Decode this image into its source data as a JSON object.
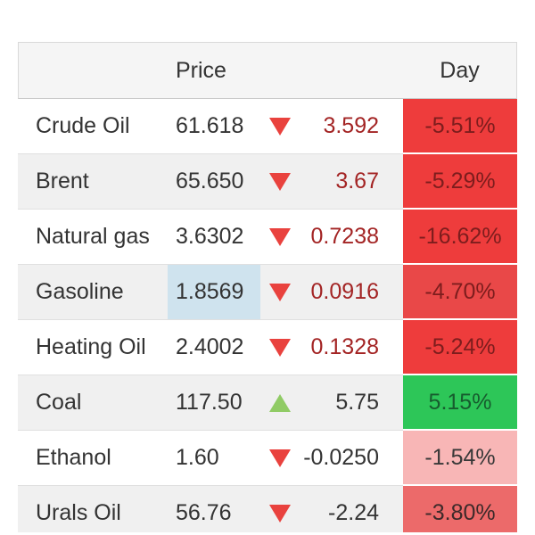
{
  "header": {
    "price_label": "Price",
    "day_label": "Day"
  },
  "colors": {
    "strong_red_bg": "#ee3c3c",
    "soft_red_bg": "#e94848",
    "medium_red_bg": "#ec6a6a",
    "light_pink_bg": "#f8b6b6",
    "green_bg": "#2dc658",
    "dark_red_text": "#7d1d1d",
    "change_red_text": "#a32424",
    "down_arrow": "#e9423e",
    "up_arrow": "#90cb65",
    "price_flash_blue": "#cfe3ee"
  },
  "rows": [
    {
      "name": "Crude Oil",
      "price": "61.618",
      "price_box_style": "",
      "direction": "down",
      "arrow_style": "width:0;height:0;border-left:12px solid transparent;border-right:12px solid transparent;border-top:20px solid #e9423e",
      "change": "3.592",
      "change_style": "color:#a32424",
      "day": "-5.51%",
      "day_style": "background:#ee3c3c;color:#7d1d1d"
    },
    {
      "name": "Brent",
      "price": "65.650",
      "price_box_style": "",
      "direction": "down",
      "arrow_style": "width:0;height:0;border-left:12px solid transparent;border-right:12px solid transparent;border-top:20px solid #e9423e",
      "change": "3.67",
      "change_style": "color:#a32424",
      "day": "-5.29%",
      "day_style": "background:#ee3c3c;color:#7d1d1d"
    },
    {
      "name": "Natural gas",
      "price": "3.6302",
      "price_box_style": "",
      "direction": "down",
      "arrow_style": "width:0;height:0;border-left:12px solid transparent;border-right:12px solid transparent;border-top:20px solid #e9423e",
      "change": "0.7238",
      "change_style": "color:#a32424",
      "day": "-16.62%",
      "day_style": "background:#ee3c3c;color:#7d1d1d"
    },
    {
      "name": "Gasoline",
      "price": "1.8569",
      "price_box_style": "background:#cfe3ee",
      "direction": "down",
      "arrow_style": "width:0;height:0;border-left:12px solid transparent;border-right:12px solid transparent;border-top:20px solid #e9423e",
      "change": "0.0916",
      "change_style": "color:#a32424",
      "day": "-4.70%",
      "day_style": "background:#e94848;color:#7d1d1d"
    },
    {
      "name": "Heating Oil",
      "price": "2.4002",
      "price_box_style": "",
      "direction": "down",
      "arrow_style": "width:0;height:0;border-left:12px solid transparent;border-right:12px solid transparent;border-top:20px solid #e9423e",
      "change": "0.1328",
      "change_style": "color:#a32424",
      "day": "-5.24%",
      "day_style": "background:#ee3c3c;color:#7d1d1d"
    },
    {
      "name": "Coal",
      "price": "117.50",
      "price_box_style": "",
      "direction": "up",
      "arrow_style": "width:0;height:0;border-left:12px solid transparent;border-right:12px solid transparent;border-bottom:20px solid #90cb65",
      "change": "5.75",
      "change_style": "color:#333333",
      "day": "5.15%",
      "day_style": "background:#2dc658;color:#175c2e"
    },
    {
      "name": "Ethanol",
      "price": "1.60",
      "price_box_style": "",
      "direction": "down",
      "arrow_style": "width:0;height:0;border-left:12px solid transparent;border-right:12px solid transparent;border-top:20px solid #e9423e",
      "change": "-0.0250",
      "change_style": "color:#333333",
      "day": "-1.54%",
      "day_style": "background:#f8b6b6;color:#383838"
    },
    {
      "name": "Urals Oil",
      "price": "56.76",
      "price_box_style": "",
      "direction": "down",
      "arrow_style": "width:0;height:0;border-left:12px solid transparent;border-right:12px solid transparent;border-top:20px solid #e9423e",
      "change": "-2.24",
      "change_style": "color:#333333",
      "day": "-3.80%",
      "day_style": "background:#ec6a6a;color:#3d2a2a"
    }
  ]
}
